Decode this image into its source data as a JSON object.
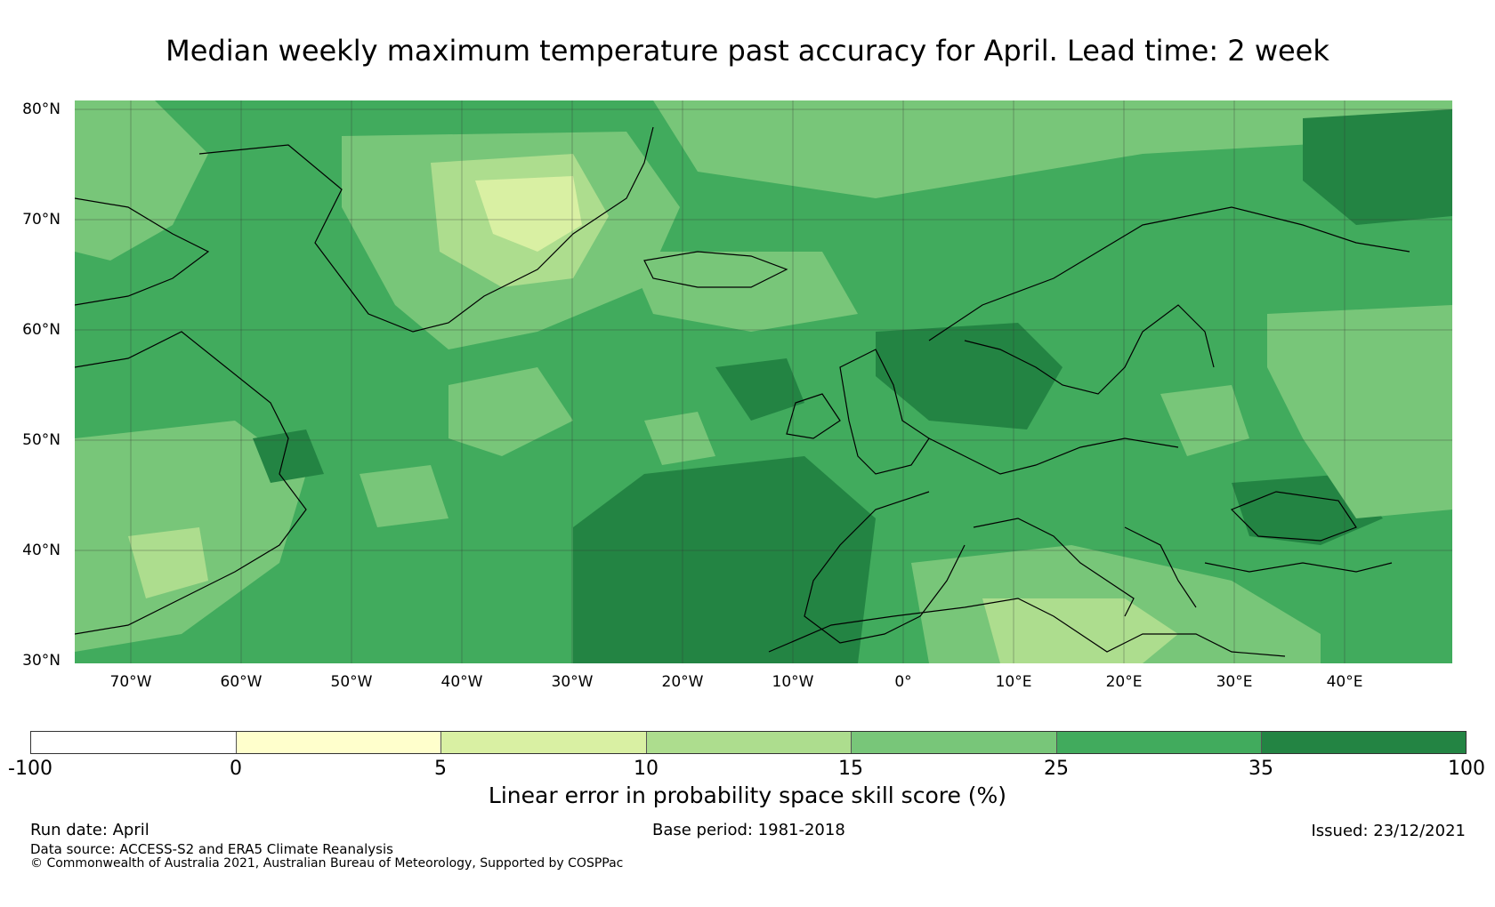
{
  "title": "Median weekly maximum temperature past accuracy for April. Lead time: 2 week",
  "map": {
    "region": "North Atlantic and Europe",
    "lat_labels": [
      "80°N",
      "70°N",
      "60°N",
      "50°N",
      "40°N",
      "30°N"
    ],
    "lon_labels": [
      "70°W",
      "60°W",
      "50°W",
      "40°W",
      "30°W",
      "20°W",
      "10°W",
      "0°",
      "10°E",
      "20°E",
      "30°E",
      "40°E"
    ],
    "graticule": "on"
  },
  "colorbar": {
    "ticks": [
      "-100",
      "0",
      "5",
      "10",
      "15",
      "25",
      "35",
      "100"
    ],
    "colors": [
      "#ffffff",
      "#ffffcc",
      "#d9f0a3",
      "#addd8e",
      "#78c679",
      "#41ab5d",
      "#238443"
    ],
    "label": "Linear error in probability space skill score (%)"
  },
  "footer": {
    "run_date": "Run date: April",
    "base_period": "Base period: 1981-2018",
    "issued": "Issued: 23/12/2021",
    "data_source": "Data source: ACCESS-S2 and ERA5 Climate Reanalysis",
    "copyright": "© Commonwealth of Australia 2021, Australian Bureau of Meteorology, Supported by COSPPac"
  }
}
